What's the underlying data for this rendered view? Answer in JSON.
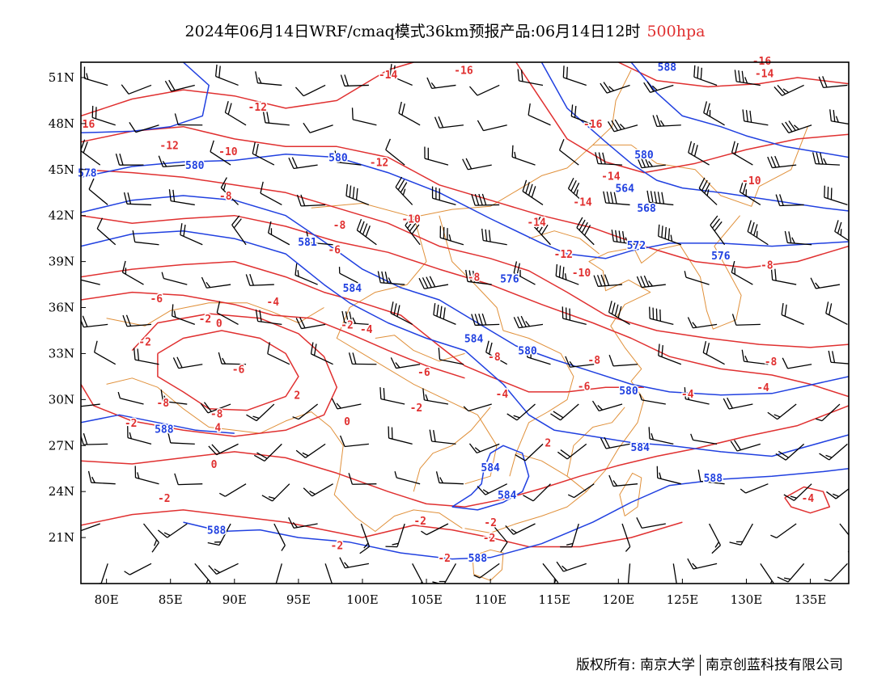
{
  "title": {
    "main": "2024年06月14日WRF/cmaq模式36km预报产品:06月14日12时",
    "level": "500hpa"
  },
  "colors": {
    "height_contour": "#2040e0",
    "temperature_contour": "#e03030",
    "border": "#e0903a",
    "wind_barb": "#000000",
    "frame": "#000000"
  },
  "map": {
    "projection": "lat-lon",
    "lon_range": [
      78,
      138
    ],
    "lat_range": [
      18,
      52
    ],
    "lon_ticks": [
      "80E",
      "85E",
      "90E",
      "95E",
      "100E",
      "105E",
      "110E",
      "115E",
      "120E",
      "125E",
      "130E",
      "135E"
    ],
    "lat_ticks": [
      "51N",
      "48N",
      "45N",
      "42N",
      "39N",
      "36N",
      "33N",
      "30N",
      "27N",
      "24N",
      "21N"
    ],
    "height_labels": [
      {
        "text": "588",
        "lon": 123.8,
        "lat": 51.7
      },
      {
        "text": "578",
        "lon": 78.5,
        "lat": 44.8
      },
      {
        "text": "580",
        "lon": 86.9,
        "lat": 45.3
      },
      {
        "text": "580",
        "lon": 98.1,
        "lat": 45.8
      },
      {
        "text": "580",
        "lon": 122.0,
        "lat": 46.0
      },
      {
        "text": "564",
        "lon": 120.5,
        "lat": 43.8
      },
      {
        "text": "568",
        "lon": 122.2,
        "lat": 42.5
      },
      {
        "text": "572",
        "lon": 121.4,
        "lat": 40.1
      },
      {
        "text": "576",
        "lon": 128.0,
        "lat": 39.4
      },
      {
        "text": "581",
        "lon": 95.7,
        "lat": 40.3
      },
      {
        "text": "576",
        "lon": 111.5,
        "lat": 37.9
      },
      {
        "text": "584",
        "lon": 99.2,
        "lat": 37.3
      },
      {
        "text": "584",
        "lon": 108.7,
        "lat": 34.0
      },
      {
        "text": "580",
        "lon": 112.9,
        "lat": 33.2
      },
      {
        "text": "580",
        "lon": 120.8,
        "lat": 30.6
      },
      {
        "text": "588",
        "lon": 84.5,
        "lat": 28.1
      },
      {
        "text": "584",
        "lon": 121.7,
        "lat": 26.9
      },
      {
        "text": "584",
        "lon": 110.0,
        "lat": 25.6
      },
      {
        "text": "584",
        "lon": 111.3,
        "lat": 23.8
      },
      {
        "text": "588",
        "lon": 127.4,
        "lat": 24.9
      },
      {
        "text": "588",
        "lon": 88.6,
        "lat": 21.5
      },
      {
        "text": "588",
        "lon": 109.0,
        "lat": 19.7
      }
    ],
    "temp_labels": [
      {
        "text": "16",
        "lon": 78.6,
        "lat": 48.0
      },
      {
        "text": "-12",
        "lon": 91.8,
        "lat": 49.1
      },
      {
        "text": "-12",
        "lon": 84.9,
        "lat": 46.6
      },
      {
        "text": "-10",
        "lon": 89.5,
        "lat": 46.2
      },
      {
        "text": "-14",
        "lon": 102.0,
        "lat": 51.2
      },
      {
        "text": "-16",
        "lon": 107.9,
        "lat": 51.5
      },
      {
        "text": "-16",
        "lon": 118.0,
        "lat": 48.0
      },
      {
        "text": "-16",
        "lon": 131.2,
        "lat": 52.1
      },
      {
        "text": "-14",
        "lon": 131.4,
        "lat": 51.3
      },
      {
        "text": "-12",
        "lon": 101.3,
        "lat": 45.5
      },
      {
        "text": "-14",
        "lon": 119.4,
        "lat": 44.6
      },
      {
        "text": "-10",
        "lon": 130.4,
        "lat": 44.3
      },
      {
        "text": "-14",
        "lon": 117.2,
        "lat": 42.9
      },
      {
        "text": "-8",
        "lon": 89.3,
        "lat": 43.3
      },
      {
        "text": "-10",
        "lon": 103.8,
        "lat": 41.8
      },
      {
        "text": "-14",
        "lon": 113.6,
        "lat": 41.6
      },
      {
        "text": "-8",
        "lon": 98.2,
        "lat": 41.4
      },
      {
        "text": "-12",
        "lon": 115.7,
        "lat": 39.5
      },
      {
        "text": "-6",
        "lon": 97.8,
        "lat": 39.8
      },
      {
        "text": "-10",
        "lon": 117.1,
        "lat": 38.3
      },
      {
        "text": "-8",
        "lon": 108.7,
        "lat": 38.0
      },
      {
        "text": "-8",
        "lon": 131.6,
        "lat": 38.8
      },
      {
        "text": "-6",
        "lon": 83.9,
        "lat": 36.6
      },
      {
        "text": "-4",
        "lon": 93.0,
        "lat": 36.4
      },
      {
        "text": "-2",
        "lon": 87.7,
        "lat": 35.3
      },
      {
        "text": "0",
        "lon": 88.8,
        "lat": 35.0
      },
      {
        "text": "-2",
        "lon": 98.8,
        "lat": 34.9
      },
      {
        "text": "-4",
        "lon": 100.3,
        "lat": 34.6
      },
      {
        "text": "-2",
        "lon": 83.0,
        "lat": 33.8
      },
      {
        "text": "-8",
        "lon": 110.3,
        "lat": 32.8
      },
      {
        "text": "-8",
        "lon": 118.1,
        "lat": 32.6
      },
      {
        "text": "-8",
        "lon": 131.9,
        "lat": 32.5
      },
      {
        "text": "-6",
        "lon": 90.3,
        "lat": 32.0
      },
      {
        "text": "-6",
        "lon": 104.8,
        "lat": 31.8
      },
      {
        "text": "-6",
        "lon": 117.3,
        "lat": 30.9
      },
      {
        "text": "-4",
        "lon": 110.9,
        "lat": 30.4
      },
      {
        "text": "-4",
        "lon": 125.4,
        "lat": 30.4
      },
      {
        "text": "-4",
        "lon": 131.3,
        "lat": 30.8
      },
      {
        "text": "2",
        "lon": 94.9,
        "lat": 30.3
      },
      {
        "text": "-8",
        "lon": 84.4,
        "lat": 29.8
      },
      {
        "text": "-2",
        "lon": 104.2,
        "lat": 29.5
      },
      {
        "text": "-8",
        "lon": 88.6,
        "lat": 29.1
      },
      {
        "text": "-2",
        "lon": 81.9,
        "lat": 28.5
      },
      {
        "text": "0",
        "lon": 98.8,
        "lat": 28.6
      },
      {
        "text": "4",
        "lon": 88.7,
        "lat": 28.2
      },
      {
        "text": "2",
        "lon": 114.5,
        "lat": 27.2
      },
      {
        "text": "0",
        "lon": 88.4,
        "lat": 25.8
      },
      {
        "text": "-2",
        "lon": 84.5,
        "lat": 23.6
      },
      {
        "text": "-4",
        "lon": 134.8,
        "lat": 23.6
      },
      {
        "text": "-2",
        "lon": 104.5,
        "lat": 22.1
      },
      {
        "text": "-2",
        "lon": 110.0,
        "lat": 22.0
      },
      {
        "text": "-2",
        "lon": 109.9,
        "lat": 21.0
      },
      {
        "text": "-2",
        "lon": 98.0,
        "lat": 20.5
      },
      {
        "text": "-2",
        "lon": 106.4,
        "lat": 19.7
      }
    ]
  },
  "footer": {
    "copyright": "版权所有: 南京大学",
    "company": "南京创蓝科技有限公司"
  }
}
